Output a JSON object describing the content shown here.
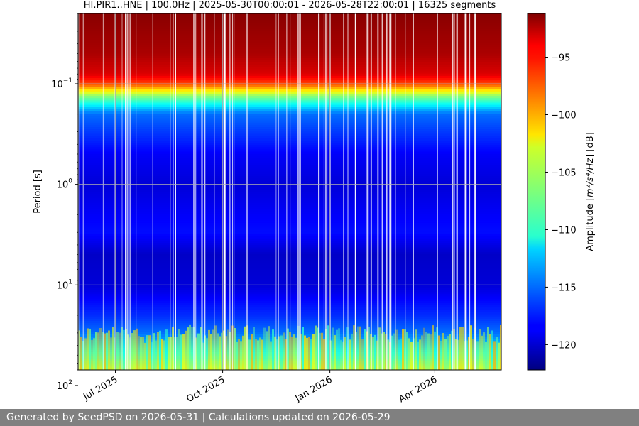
{
  "chart_data": {
    "type": "heatmap",
    "title": "HI.PIR1..HNE | 100.0Hz | 2025-05-30T00:00:01 - 2026-05-28T22:00:01 | 16325 segments",
    "ylabel": "Period [s]",
    "yscale": "log",
    "y_inverted": true,
    "ylim": [
      0.02,
      70
    ],
    "y_ticks": [
      {
        "value": 0.1,
        "base": "10",
        "exp": "−1"
      },
      {
        "value": 1,
        "base": "10",
        "exp": "0"
      },
      {
        "value": 10,
        "base": "10",
        "exp": "1"
      },
      {
        "value": 100,
        "base": "10",
        "exp": "2"
      }
    ],
    "xlim": [
      "2025-05-30",
      "2026-05-28"
    ],
    "x_ticks": [
      {
        "date": "2025-07-01",
        "label": "Jul 2025"
      },
      {
        "date": "2025-10-01",
        "label": "Oct 2025"
      },
      {
        "date": "2026-01-01",
        "label": "Jan 2026"
      },
      {
        "date": "2026-04-01",
        "label": "Apr 2026"
      }
    ],
    "grid": true,
    "colormap": "jet",
    "colorbar": {
      "label_prefix": "Amplitude [",
      "label_math": "m²/s⁴/Hz",
      "label_suffix": "] [dB]",
      "range": [
        -122.2,
        -91.2
      ],
      "ticks": [
        {
          "value": -95,
          "label": "−95"
        },
        {
          "value": -100,
          "label": "−100"
        },
        {
          "value": -105,
          "label": "−105"
        },
        {
          "value": -110,
          "label": "−110"
        },
        {
          "value": -115,
          "label": "−115"
        },
        {
          "value": -120,
          "label": "−120"
        }
      ]
    },
    "profile": {
      "period": [
        0.02,
        0.05,
        0.08,
        0.1,
        0.13,
        0.2,
        0.5,
        1,
        2,
        3,
        5,
        10,
        20,
        30,
        50,
        70
      ],
      "amplitude_db": [
        -91.5,
        -92.5,
        -94,
        -97,
        -106,
        -115,
        -118.5,
        -119.5,
        -118.5,
        -118,
        -120,
        -119.5,
        -117,
        -115,
        -110,
        -105
      ]
    }
  },
  "footer": {
    "text": "Generated by SeedPSD on 2026-05-31 | Calculations updated on 2026-05-29"
  }
}
